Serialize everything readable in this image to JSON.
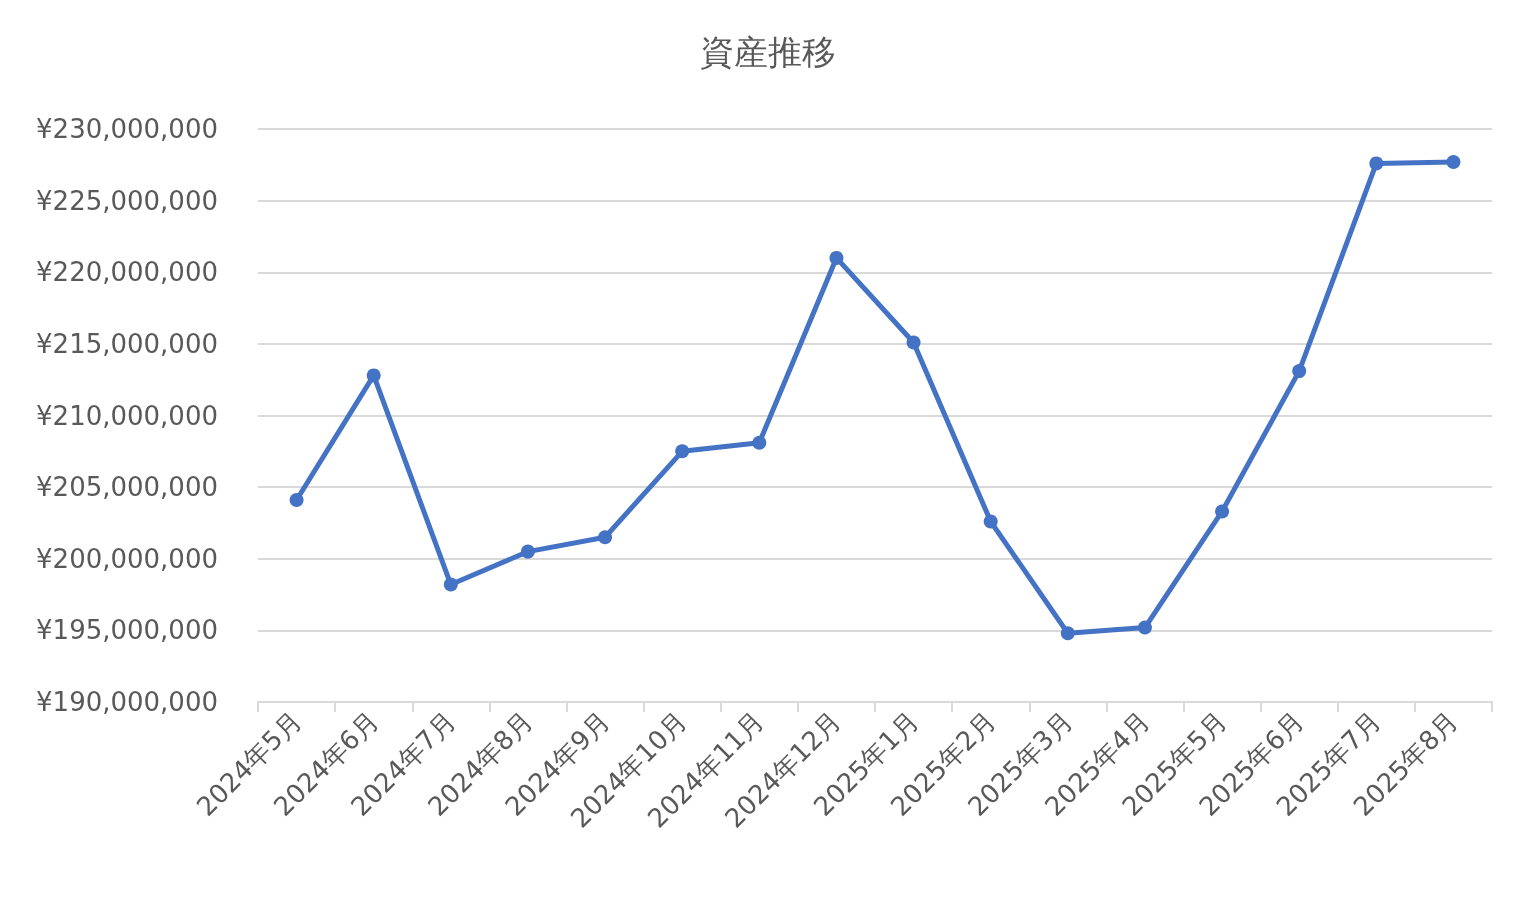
{
  "chart_data": {
    "type": "line",
    "title": "資産推移",
    "categories": [
      "2024年5月",
      "2024年6月",
      "2024年7月",
      "2024年8月",
      "2024年9月",
      "2024年10月",
      "2024年11月",
      "2024年12月",
      "2025年1月",
      "2025年2月",
      "2025年3月",
      "2025年4月",
      "2025年5月",
      "2025年6月",
      "2025年7月",
      "2025年8月"
    ],
    "series": [
      {
        "color": "#4472c4",
        "values": [
          204100000,
          212800000,
          198200000,
          200500000,
          201500000,
          207500000,
          208100000,
          221000000,
          215100000,
          202600000,
          194800000,
          195200000,
          203300000,
          213100000,
          227600000,
          227700000
        ]
      }
    ],
    "ylim": [
      190000000,
      230000000
    ],
    "yticks": [
      {
        "value": 190000000,
        "label": "¥190,000,000"
      },
      {
        "value": 195000000,
        "label": "¥195,000,000"
      },
      {
        "value": 200000000,
        "label": "¥200,000,000"
      },
      {
        "value": 205000000,
        "label": "¥205,000,000"
      },
      {
        "value": 210000000,
        "label": "¥210,000,000"
      },
      {
        "value": 215000000,
        "label": "¥215,000,000"
      },
      {
        "value": 220000000,
        "label": "¥220,000,000"
      },
      {
        "value": 225000000,
        "label": "¥225,000,000"
      },
      {
        "value": 230000000,
        "label": "¥230,000,000"
      }
    ],
    "grid": "y",
    "marker": "circle",
    "line_style": "solid"
  }
}
